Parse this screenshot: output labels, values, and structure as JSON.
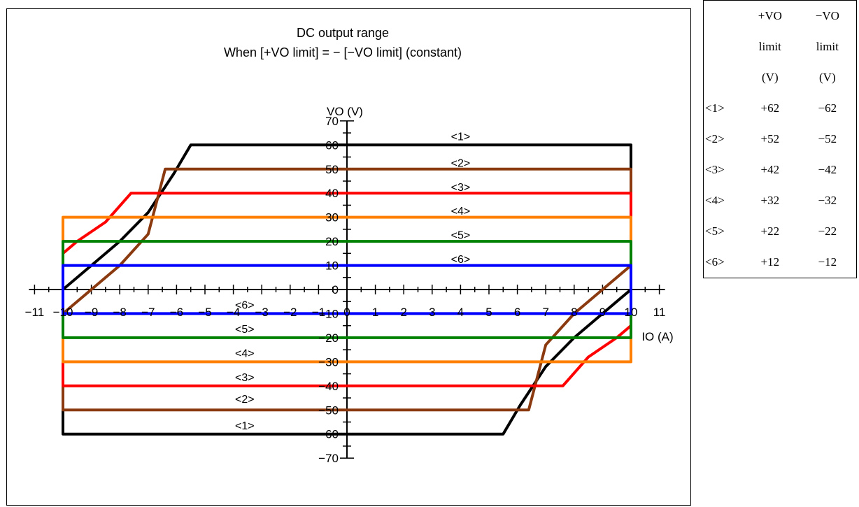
{
  "chart_data": {
    "type": "line",
    "title": "DC output range",
    "subtitle": "When [+VO limit] = − [−VO limit] (constant)",
    "xlabel": "IO (A)",
    "ylabel": "VO (V)",
    "xlim": [
      -11,
      11
    ],
    "ylim": [
      -70,
      70
    ],
    "x_ticks": [
      -11,
      -10,
      -9,
      -8,
      -7,
      -6,
      -5,
      -4,
      -3,
      -2,
      -1,
      0,
      1,
      2,
      3,
      4,
      5,
      6,
      7,
      8,
      9,
      10,
      11
    ],
    "x_tick_labels": [
      "−11",
      "−10",
      "−9",
      "−8",
      "−7",
      "−6",
      "−5",
      "−4",
      "−3",
      "−2",
      "−1",
      "0",
      "1",
      "2",
      "3",
      "4",
      "5",
      "6",
      "7",
      "8",
      "9",
      "10",
      "11"
    ],
    "y_ticks": [
      70,
      60,
      50,
      40,
      30,
      20,
      10,
      0,
      -10,
      -20,
      -30,
      -40,
      -50,
      -60,
      -70
    ],
    "y_tick_labels": [
      "70",
      "60",
      "50",
      "40",
      "30",
      "20",
      "10",
      "0",
      "−10",
      "−20",
      "−30",
      "−40",
      "−50",
      "−60",
      "−70"
    ],
    "series": [
      {
        "name": "<1>",
        "color": "#000000",
        "points": [
          [
            -5.5,
            60
          ],
          [
            10,
            60
          ],
          [
            10,
            0
          ],
          [
            9,
            -10
          ],
          [
            8,
            -20
          ],
          [
            7,
            -32
          ],
          [
            6.1,
            -48
          ],
          [
            5.5,
            -60
          ],
          [
            -10,
            -60
          ],
          [
            -10,
            0
          ],
          [
            -9,
            10
          ],
          [
            -8,
            20
          ],
          [
            -7,
            32
          ],
          [
            -6.1,
            48
          ],
          [
            -5.5,
            60
          ]
        ],
        "label_top": [
          4.0,
          62
        ],
        "label_bottom": [
          -3.6,
          -58
        ]
      },
      {
        "name": "<2>",
        "color": "#8B3A0F",
        "points": [
          [
            -6.4,
            50
          ],
          [
            10,
            50
          ],
          [
            10,
            10
          ],
          [
            9,
            0
          ],
          [
            8,
            -10
          ],
          [
            7,
            -23
          ],
          [
            6.4,
            -50
          ],
          [
            -10,
            -50
          ],
          [
            -10,
            -10
          ],
          [
            -9,
            0
          ],
          [
            -8,
            10
          ],
          [
            -7,
            23
          ],
          [
            -6.4,
            50
          ]
        ],
        "label_top": [
          4.0,
          51
        ],
        "label_bottom": [
          -3.6,
          -47
        ]
      },
      {
        "name": "<3>",
        "color": "#FF0000",
        "points": [
          [
            -7.6,
            40
          ],
          [
            10,
            40
          ],
          [
            10,
            -15
          ],
          [
            9.5,
            -20
          ],
          [
            8.5,
            -28
          ],
          [
            7.6,
            -40
          ],
          [
            -10,
            -40
          ],
          [
            -10,
            15
          ],
          [
            -9.5,
            20
          ],
          [
            -8.5,
            28
          ],
          [
            -7.6,
            40
          ]
        ],
        "label_top": [
          4.0,
          41
        ],
        "label_bottom": [
          -3.6,
          -38
        ]
      },
      {
        "name": "<4>",
        "color": "#FF7F00",
        "points": [
          [
            -10,
            30
          ],
          [
            10,
            30
          ],
          [
            10,
            -30
          ],
          [
            -10,
            -30
          ],
          [
            -10,
            30
          ]
        ],
        "label_top": [
          4.0,
          31
        ],
        "label_bottom": [
          -3.6,
          -28
        ]
      },
      {
        "name": "<5>",
        "color": "#008000",
        "points": [
          [
            -10,
            20
          ],
          [
            10,
            20
          ],
          [
            10,
            -20
          ],
          [
            -10,
            -20
          ],
          [
            -10,
            20
          ]
        ],
        "label_top": [
          4.0,
          21
        ],
        "label_bottom": [
          -3.6,
          -18
        ]
      },
      {
        "name": "<6>",
        "color": "#0000FF",
        "points": [
          [
            -10,
            10
          ],
          [
            10,
            10
          ],
          [
            10,
            -10
          ],
          [
            -10,
            -10
          ],
          [
            -10,
            10
          ]
        ],
        "label_top": [
          4.0,
          11
        ],
        "label_bottom": [
          -3.6,
          -8
        ]
      }
    ],
    "grid": false,
    "legend": "none"
  },
  "limit_table": {
    "header": [
      [
        "",
        "+VO",
        "−VO"
      ],
      [
        "",
        "limit",
        "limit"
      ],
      [
        "",
        "(V)",
        "(V)"
      ]
    ],
    "rows": [
      {
        "name": "<1>",
        "plus": "+62",
        "minus": "−62"
      },
      {
        "name": "<2>",
        "plus": "+52",
        "minus": "−52"
      },
      {
        "name": "<3>",
        "plus": "+42",
        "minus": "−42"
      },
      {
        "name": "<4>",
        "plus": "+32",
        "minus": "−32"
      },
      {
        "name": "<5>",
        "plus": "+22",
        "minus": "−22"
      },
      {
        "name": "<6>",
        "plus": "+12",
        "minus": "−12"
      }
    ]
  }
}
